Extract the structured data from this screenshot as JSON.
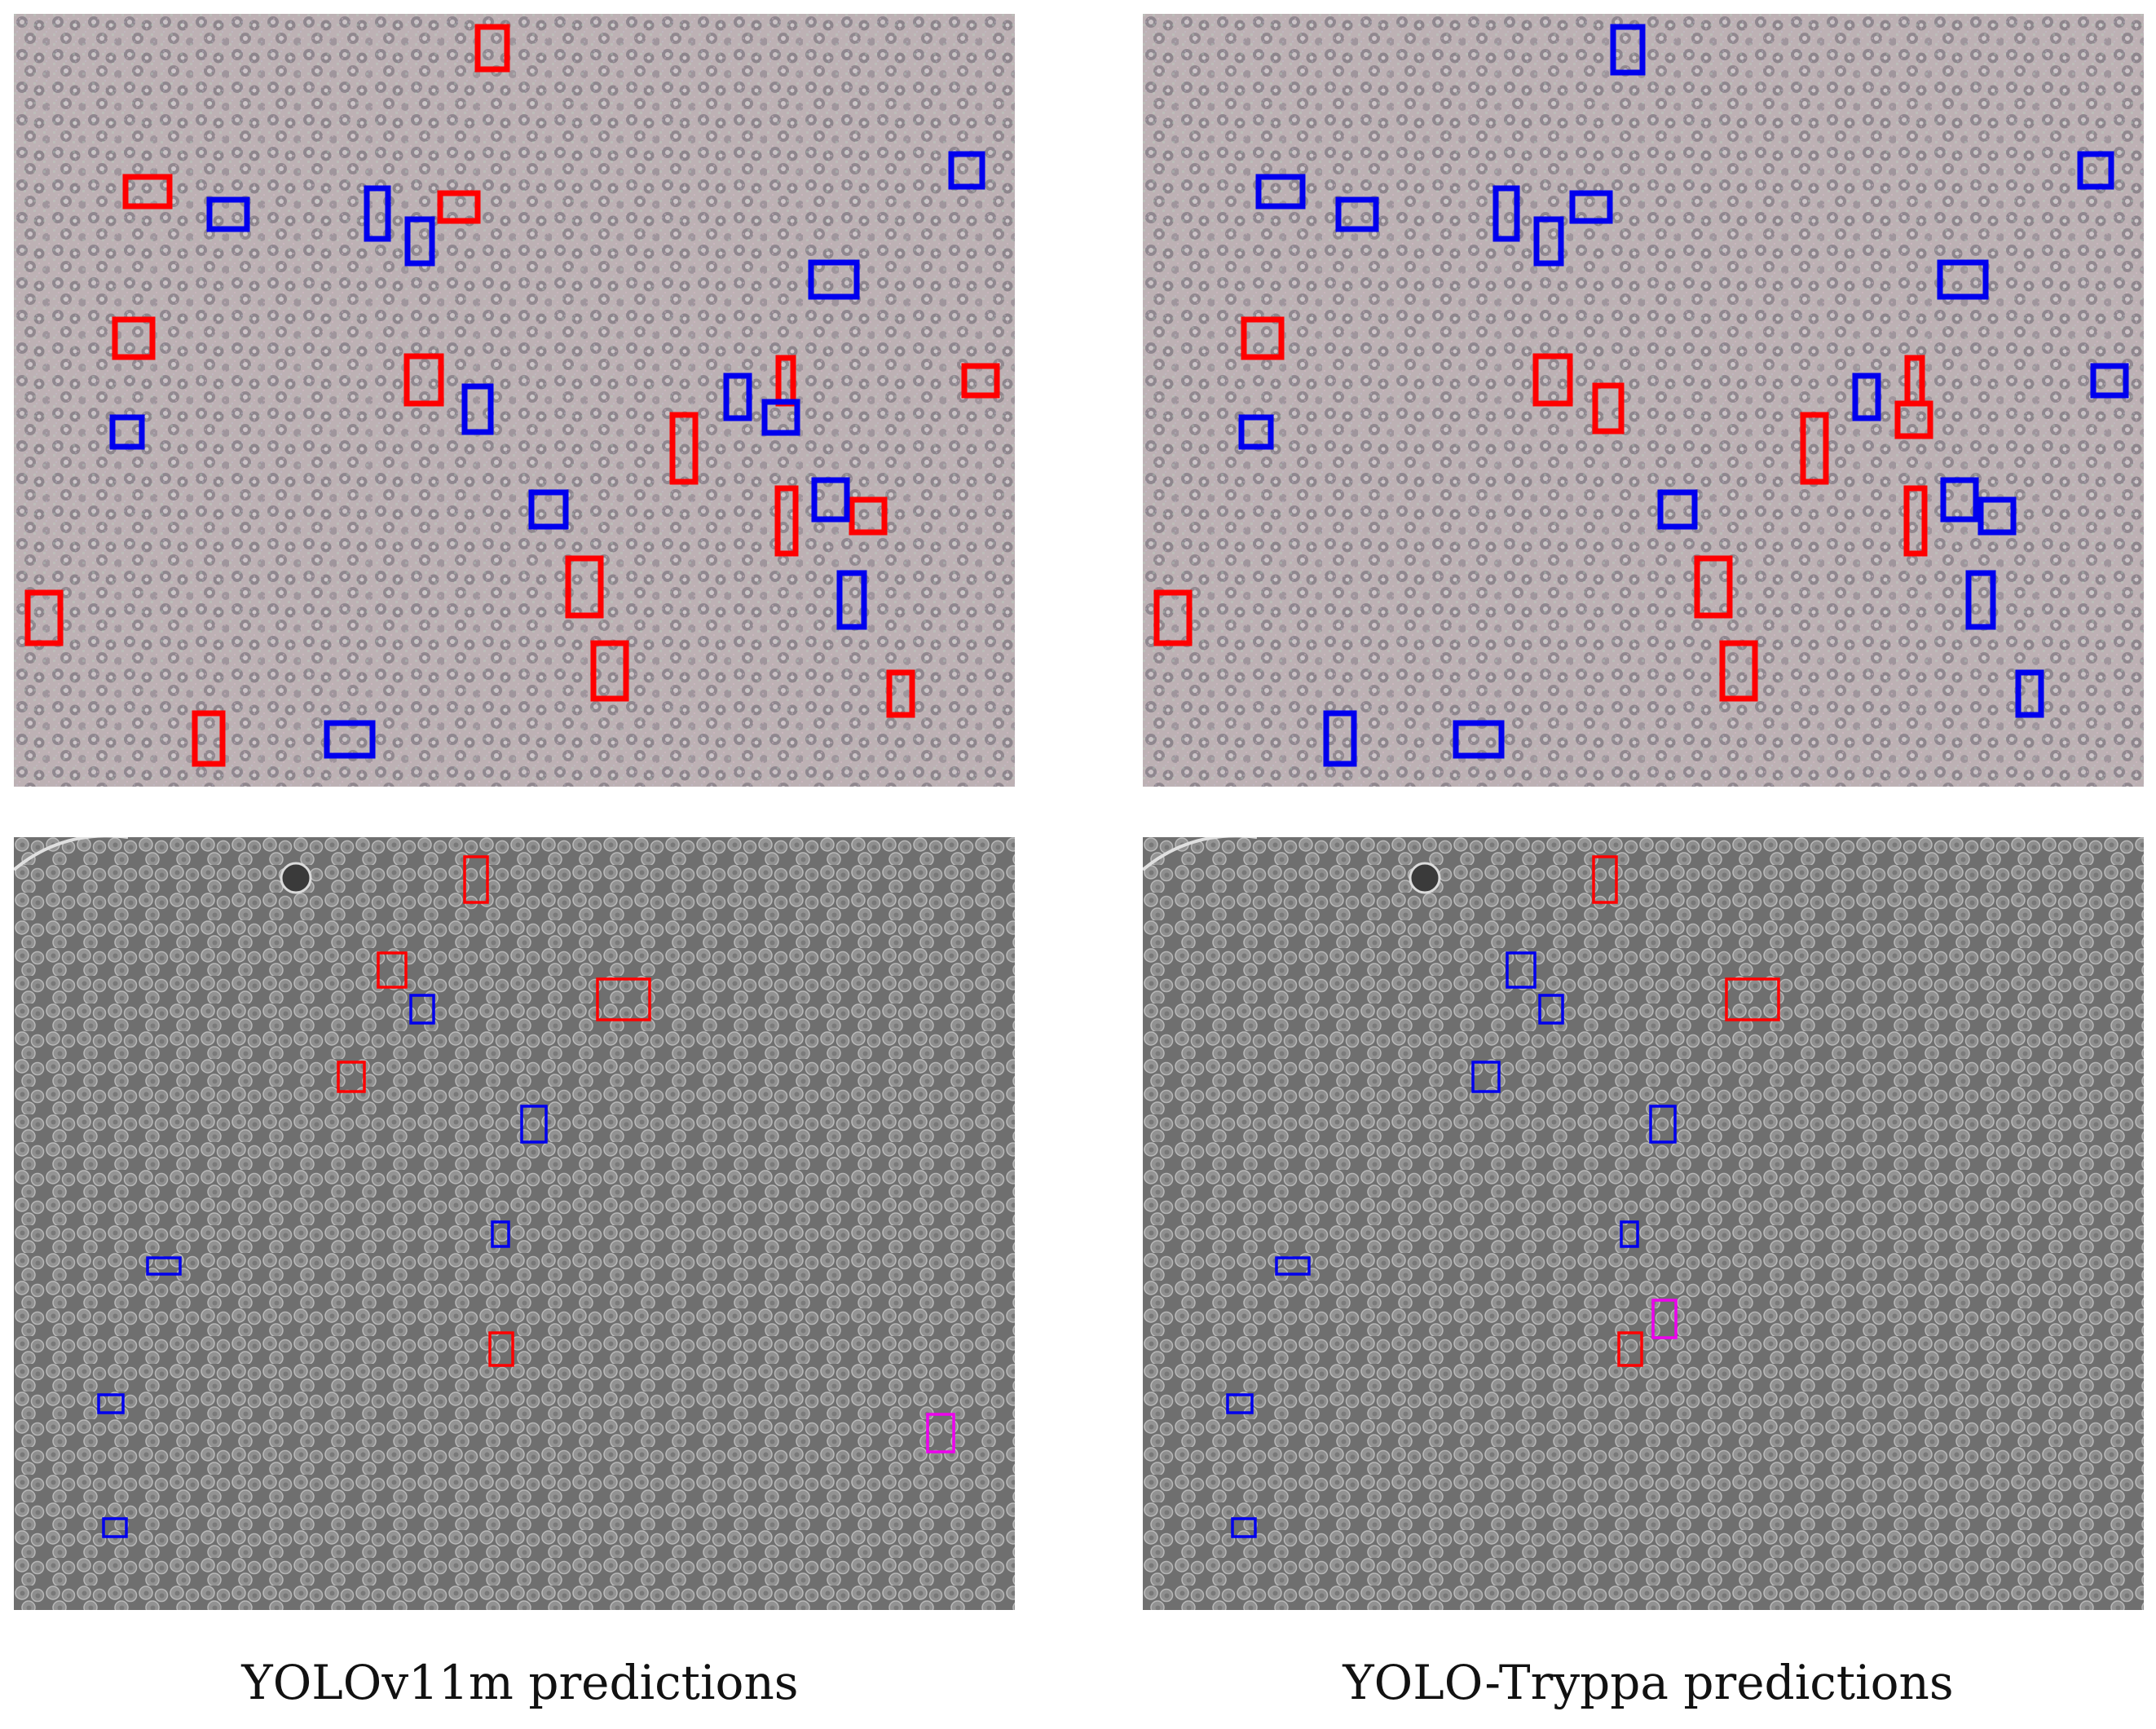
{
  "captions": {
    "left": "YOLOv11m predictions",
    "right": "YOLO-Tryppa predictions"
  },
  "colors": {
    "red": "#ff0000",
    "blue": "#0000ee",
    "magenta": "#ee00ee",
    "phase_bg": "#bdb1b4",
    "dic_bg": "#6f6f6f"
  }
}
